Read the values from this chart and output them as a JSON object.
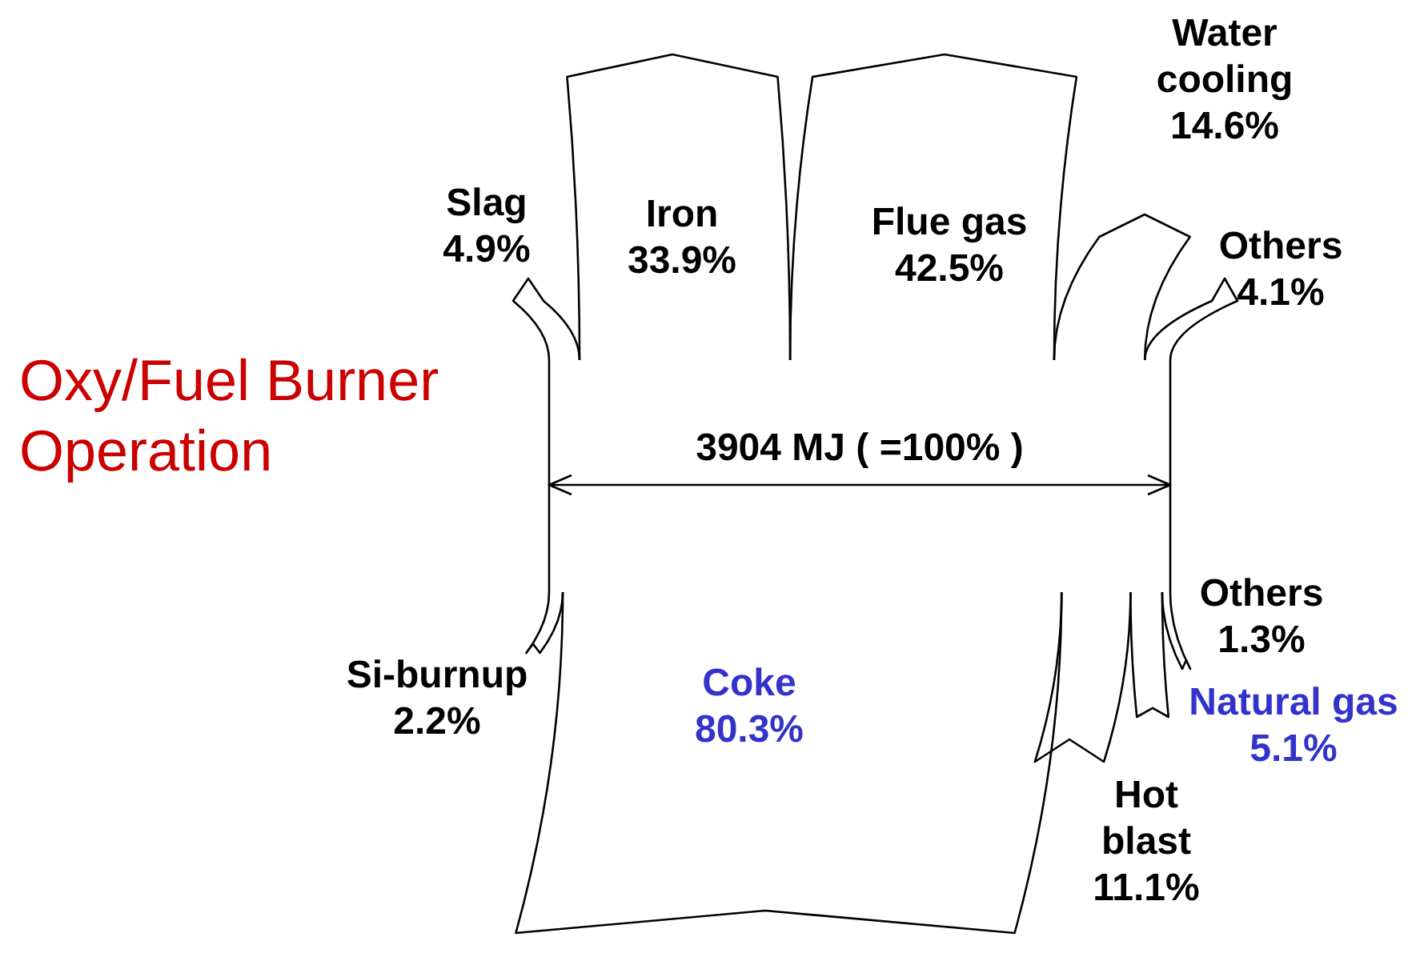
{
  "chart_data": {
    "type": "other",
    "title": "Oxy/Fuel Burner Operation",
    "annotations": [
      "3904 MJ ( =100% )"
    ],
    "categories": [
      "Slag",
      "Iron",
      "Flue gas",
      "Water cooling",
      "Others",
      "Si-burnup",
      "Coke",
      "Hot blast",
      "Natural gas",
      "Others"
    ],
    "series": [
      {
        "color": "#000000",
        "values": [
          4.9,
          33.9,
          42.5,
          14.6,
          4.1,
          null,
          null,
          null,
          null,
          null
        ],
        "value_labels": [
          "4.9%",
          "33.9%",
          "42.5%",
          "14.6%",
          "4.1%",
          null,
          null,
          null,
          null,
          null
        ],
        "colors": [
          "#000000",
          "#000000",
          "#000000",
          "#000000",
          "#000000",
          null,
          null,
          null,
          null,
          null
        ]
      },
      {
        "color": "#000000",
        "values": [
          null,
          null,
          null,
          null,
          null,
          2.2,
          80.3,
          11.1,
          5.1,
          1.3
        ],
        "value_labels": [
          null,
          null,
          null,
          null,
          null,
          "2.2%",
          "80.3%",
          "11.1%",
          "5.1%",
          "1.3%"
        ],
        "colors": [
          null,
          null,
          null,
          null,
          null,
          "#000000",
          "#3333cc",
          "#000000",
          "#3333cc",
          "#000000"
        ]
      }
    ]
  }
}
